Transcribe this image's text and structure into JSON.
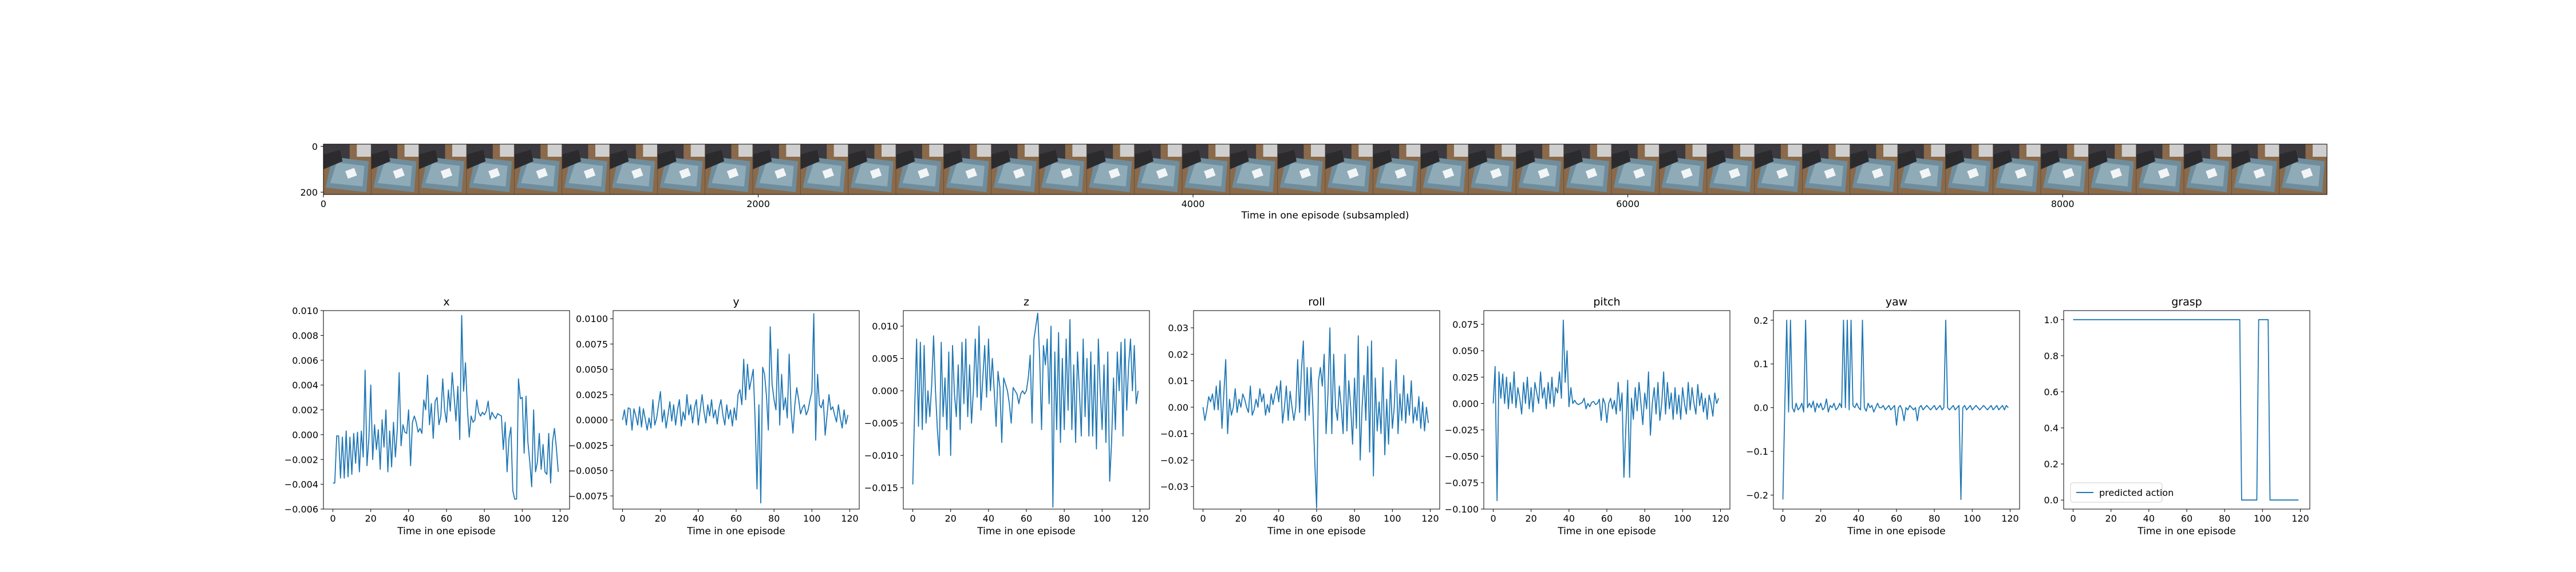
{
  "colors": {
    "line": "#1f77b4",
    "axis": "#000000",
    "background": "#ffffff"
  },
  "filmstrip": {
    "xlabel": "Time in one episode (subsampled)",
    "x_ticks": [
      "0",
      "2000",
      "4000",
      "6000",
      "8000"
    ],
    "y_ticks": [
      "0",
      "200"
    ],
    "frame_count": 42,
    "image_content": "robot arm camera frames over gray bin"
  },
  "chart_data": [
    {
      "type": "line",
      "title": "x",
      "xlabel": "Time in one episode",
      "ylabel": "",
      "xlim": [
        -5,
        125
      ],
      "ylim": [
        -0.006,
        0.01
      ],
      "x_ticks": [
        0,
        20,
        40,
        60,
        80,
        100,
        120
      ],
      "y_ticks": [
        -0.006,
        -0.004,
        -0.002,
        0.0,
        0.002,
        0.004,
        0.006,
        0.008,
        0.01
      ],
      "y_tick_labels": [
        "−0.006",
        "−0.004",
        "−0.002",
        "0.000",
        "0.002",
        "0.004",
        "0.006",
        "0.008",
        "0.010"
      ],
      "values": [
        -0.0039,
        -0.0039,
        -0.0001,
        -0.0001,
        -0.0035,
        -0.0002,
        -0.0035,
        0.0003,
        -0.0034,
        -0.0002,
        -0.0032,
        0.0001,
        -0.0023,
        0.0002,
        -0.003,
        0.0003,
        -0.0018,
        0.0052,
        -0.0025,
        -0.0003,
        0.004,
        -0.002,
        0.0008,
        -0.0012,
        0.0004,
        -0.0028,
        0.0012,
        -0.001,
        0.002,
        -0.003,
        0.0003,
        -0.0026,
        0.001,
        -0.0018,
        0.0004,
        0.005,
        -0.0009,
        0.0008,
        0.0002,
        0.0001,
        0.002,
        -0.0025,
        0.001,
        0.0015,
        0.001,
        0.0002,
        0.0005,
        0.0001,
        0.0028,
        0.002,
        0.0048,
        0.0008,
        0.0025,
        -0.0003,
        0.0027,
        0.003,
        0.0008,
        0.0015,
        0.0045,
        0.002,
        0.001,
        0.0036,
        0.0019,
        0.005,
        0.0031,
        0.0011,
        0.0039,
        -0.0004,
        0.0096,
        0.0035,
        0.0058,
        0.0022,
        -0.0002,
        0.0015,
        0.001,
        0.0012,
        0.0028,
        0.0018,
        0.0015,
        0.0018,
        0.0016,
        0.0019,
        0.0027,
        0.0012,
        0.0018,
        0.0015,
        0.0013,
        0.0017,
        0.0016,
        0.0015,
        -0.0012,
        0.001,
        -0.003,
        -0.0003,
        0.0006,
        -0.0045,
        -0.0052,
        -0.0052,
        0.0045,
        0.0029,
        0.003,
        -0.0015,
        0.0031,
        -0.0006,
        -0.0022,
        -0.0042,
        0.002,
        -0.003,
        -0.0022,
        0.0001,
        -0.0028,
        -0.0008,
        -0.003,
        -0.0032,
        0.0001,
        -0.0039,
        -0.0006,
        0.0005,
        -0.001,
        -0.003
      ]
    },
    {
      "type": "line",
      "title": "y",
      "xlabel": "Time in one episode",
      "ylabel": "",
      "xlim": [
        -5,
        125
      ],
      "ylim": [
        -0.0088,
        0.0108
      ],
      "x_ticks": [
        0,
        20,
        40,
        60,
        80,
        100,
        120
      ],
      "y_ticks": [
        -0.0075,
        -0.005,
        -0.0025,
        0.0,
        0.0025,
        0.005,
        0.0075,
        0.01
      ],
      "y_tick_labels": [
        "−0.0075",
        "−0.0050",
        "−0.0025",
        "0.0000",
        "0.0025",
        "0.0050",
        "0.0075",
        "0.0100"
      ],
      "values": [
        0.0,
        0.001,
        -0.0005,
        0.0012,
        0.0011,
        -0.001,
        0.0011,
        0.0004,
        -0.0005,
        0.0013,
        -0.0007,
        0.0011,
        0.0001,
        -0.001,
        0.0002,
        -0.0008,
        0.002,
        -0.0005,
        0.0002,
        0.0015,
        0.0028,
        -0.0002,
        0.001,
        -0.0008,
        0.0005,
        0.0018,
        -0.0001,
        0.0015,
        -0.0005,
        0.001,
        0.002,
        -0.0006,
        0.0008,
        0.0,
        0.0025,
        0.0005,
        0.0015,
        -0.0003,
        0.0012,
        0.002,
        -0.0005,
        0.001,
        0.0025,
        0.0008,
        -0.0003,
        0.0015,
        0.0004,
        0.002,
        0.0002,
        0.001,
        -0.0004,
        0.0012,
        0.002,
        0.0005,
        -0.0005,
        0.0015,
        0.0001,
        0.001,
        -0.0006,
        0.0012,
        0.0,
        0.0025,
        0.003,
        0.0015,
        0.006,
        0.002,
        0.0055,
        0.003,
        0.004,
        0.005,
        0.0,
        -0.0068,
        0.0015,
        -0.0082,
        0.0052,
        0.0045,
        0.0024,
        -0.001,
        0.0092,
        0.0035,
        0.002,
        0.001,
        0.007,
        -0.0005,
        0.0045,
        0.001,
        0.0022,
        0.0002,
        0.0065,
        0.001,
        -0.0013,
        0.0015,
        0.0032,
        0.002,
        0.0006,
        0.0012,
        0.0015,
        0.0005,
        0.001,
        0.002,
        0.0028,
        0.0105,
        -0.002,
        0.0045,
        0.0015,
        0.0012,
        0.002,
        -0.0015,
        0.0005,
        0.0025,
        0.001,
        0.0013,
        0.0005,
        -0.0002,
        0.0015,
        0.0002,
        -0.0008,
        0.001,
        -0.0004,
        0.0005
      ]
    },
    {
      "type": "line",
      "title": "z",
      "xlabel": "Time in one episode",
      "ylabel": "",
      "xlim": [
        -5,
        125
      ],
      "ylim": [
        -0.0183,
        0.0124
      ],
      "x_ticks": [
        0,
        20,
        40,
        60,
        80,
        100,
        120
      ],
      "y_ticks": [
        -0.015,
        -0.01,
        -0.005,
        0.0,
        0.005,
        0.01
      ],
      "y_tick_labels": [
        "−0.015",
        "−0.010",
        "−0.005",
        "0.000",
        "0.005",
        "0.010"
      ],
      "values": [
        -0.0145,
        -0.003,
        0.008,
        -0.0055,
        0.0075,
        -0.006,
        0.007,
        -0.005,
        0.0,
        -0.004,
        0.001,
        0.0085,
        0.0,
        -0.006,
        -0.01,
        0.0075,
        -0.004,
        0.002,
        -0.006,
        0.006,
        -0.01,
        0.007,
        -0.0005,
        -0.004,
        0.004,
        -0.006,
        0.0075,
        -0.002,
        0.008,
        -0.004,
        0.004,
        -0.005,
        0.0,
        0.008,
        -0.001,
        0.01,
        -0.003,
        0.002,
        0.007,
        -0.001,
        0.008,
        0.0,
        0.005,
        0.0,
        -0.0055,
        0.003,
        0.0005,
        -0.008,
        0.002,
        0.001,
        0.0,
        -0.002,
        -0.005,
        0.0005,
        0.0,
        -0.0005,
        -0.002,
        -0.0005,
        0.0,
        -0.0005,
        0.0,
        0.002,
        0.0055,
        -0.005,
        0.008,
        0.01,
        0.012,
        0.005,
        -0.006,
        0.007,
        0.004,
        0.008,
        -0.002,
        0.01,
        -0.018,
        0.006,
        -0.006,
        0.009,
        -0.008,
        0.005,
        -0.006,
        0.008,
        -0.003,
        0.011,
        -0.006,
        0.004,
        -0.008,
        0.006,
        0.0,
        -0.007,
        0.008,
        -0.004,
        0.005,
        -0.007,
        0.006,
        -0.007,
        0.004,
        -0.009,
        0.008,
        0.0,
        -0.006,
        0.004,
        -0.008,
        0.006,
        -0.014,
        -0.008,
        0.002,
        -0.006,
        0.006,
        0.0,
        0.0075,
        -0.007,
        0.008,
        -0.003,
        0.004,
        0.008,
        0.0,
        0.007,
        -0.002,
        0.0
      ]
    },
    {
      "type": "line",
      "title": "roll",
      "xlabel": "Time in one episode",
      "ylabel": "",
      "xlim": [
        -5,
        125
      ],
      "ylim": [
        -0.0385,
        0.0365
      ],
      "x_ticks": [
        0,
        20,
        40,
        60,
        80,
        100,
        120
      ],
      "y_ticks": [
        -0.03,
        -0.02,
        -0.01,
        0.0,
        0.01,
        0.02,
        0.03
      ],
      "y_tick_labels": [
        "−0.03",
        "−0.02",
        "−0.01",
        "0.00",
        "0.01",
        "0.02",
        "0.03"
      ],
      "values": [
        0.0,
        -0.005,
        -0.001,
        0.004,
        0.002,
        0.005,
        -0.001,
        0.008,
        -0.001,
        0.01,
        -0.008,
        0.005,
        0.018,
        -0.01,
        0.003,
        -0.003,
        0.0,
        0.007,
        -0.002,
        0.003,
        0.0,
        0.005,
        0.003,
        0.0,
        -0.002,
        0.008,
        -0.003,
        -0.001,
        0.003,
        0.0,
        0.007,
        0.002,
        0.005,
        -0.003,
        0.001,
        -0.002,
        0.005,
        0.001,
        0.005,
        0.008,
        0.002,
        0.01,
        -0.006,
        0.0,
        0.008,
        -0.005,
        0.006,
        0.0,
        -0.005,
        0.0,
        0.018,
        -0.002,
        0.014,
        0.025,
        -0.005,
        0.015,
        -0.003,
        0.015,
        0.0,
        -0.02,
        -0.038,
        0.01,
        0.015,
        0.008,
        0.02,
        -0.01,
        0.005,
        0.03,
        -0.01,
        0.02,
        0.0,
        -0.005,
        0.008,
        0.0,
        -0.01,
        0.02,
        -0.009,
        0.01,
        0.0,
        -0.014,
        0.011,
        -0.008,
        0.027,
        -0.02,
        0.0,
        0.012,
        -0.005,
        0.023,
        -0.017,
        0.025,
        -0.026,
        0.011,
        -0.009,
        0.002,
        -0.01,
        0.015,
        -0.018,
        0.003,
        -0.014,
        0.01,
        -0.008,
        0.0,
        0.018,
        -0.01,
        0.005,
        -0.005,
        0.012,
        -0.006,
        0.005,
        -0.003,
        0.01,
        -0.006,
        0.0,
        -0.005,
        0.004,
        -0.008,
        0.002,
        -0.009,
        0.0,
        -0.006
      ]
    },
    {
      "type": "line",
      "title": "pitch",
      "xlabel": "Time in one episode",
      "ylabel": "",
      "xlim": [
        -5,
        125
      ],
      "ylim": [
        -0.1,
        0.088
      ],
      "x_ticks": [
        0,
        20,
        40,
        60,
        80,
        100,
        120
      ],
      "y_ticks": [
        -0.1,
        -0.075,
        -0.05,
        -0.025,
        0.0,
        0.025,
        0.05,
        0.075
      ],
      "y_tick_labels": [
        "−0.100",
        "−0.075",
        "−0.050",
        "−0.025",
        "0.000",
        "0.025",
        "0.050",
        "0.075"
      ],
      "values": [
        0.0,
        0.035,
        -0.092,
        0.03,
        0.005,
        0.028,
        0.0,
        0.025,
        -0.005,
        0.02,
        0.0,
        0.03,
        -0.004,
        0.015,
        0.005,
        -0.01,
        0.02,
        0.0,
        0.025,
        -0.005,
        0.015,
        -0.008,
        0.02,
        0.01,
        0.0,
        0.03,
        0.005,
        0.015,
        -0.005,
        0.02,
        0.0,
        0.025,
        -0.003,
        0.015,
        0.01,
        0.03,
        0.005,
        0.079,
        0.02,
        0.05,
        -0.003,
        0.015,
        0.0,
        0.003,
        0.0,
        -0.001,
        0.0,
        0.001,
        0.005,
        -0.005,
        0.0,
        -0.003,
        0.001,
        0.002,
        -0.001,
        0.0,
        0.004,
        -0.016,
        0.005,
        0.0,
        -0.018,
        0.0,
        0.005,
        -0.005,
        0.003,
        -0.01,
        0.02,
        -0.007,
        0.01,
        -0.07,
        -0.025,
        0.022,
        -0.07,
        0.005,
        -0.015,
        0.015,
        -0.007,
        0.02,
        0.0,
        -0.02,
        0.01,
        -0.005,
        0.03,
        -0.03,
        0.0,
        0.015,
        -0.01,
        0.02,
        -0.016,
        0.0,
        0.03,
        -0.01,
        0.02,
        -0.005,
        0.01,
        -0.015,
        0.015,
        -0.01,
        0.008,
        -0.015,
        0.015,
        0.0,
        -0.01,
        0.02,
        -0.006,
        0.015,
        0.0,
        -0.01,
        0.018,
        -0.002,
        0.01,
        -0.008,
        0.005,
        -0.015,
        0.008,
        0.0,
        -0.012,
        0.01,
        0.0,
        0.005
      ]
    },
    {
      "type": "line",
      "title": "yaw",
      "xlabel": "Time in one episode",
      "ylabel": "",
      "xlim": [
        -5,
        125
      ],
      "ylim": [
        -0.232,
        0.222
      ],
      "x_ticks": [
        0,
        20,
        40,
        60,
        80,
        100,
        120
      ],
      "y_ticks": [
        -0.2,
        -0.1,
        0.0,
        0.1,
        0.2
      ],
      "y_tick_labels": [
        "−0.2",
        "−0.1",
        "0.0",
        "0.1",
        "0.2"
      ],
      "values": [
        -0.21,
        0.0,
        0.2,
        -0.01,
        0.2,
        0.0,
        -0.01,
        0.01,
        -0.005,
        0.0,
        0.01,
        -0.01,
        0.2,
        0.0,
        0.01,
        0.0,
        0.015,
        -0.01,
        0.01,
        0.0,
        0.01,
        -0.005,
        0.0,
        0.02,
        -0.01,
        0.005,
        0.0,
        0.01,
        -0.005,
        0.0,
        0.01,
        0.0,
        0.2,
        0.0,
        0.2,
        -0.005,
        0.2,
        0.005,
        0.0,
        0.01,
        0.0,
        -0.005,
        0.2,
        0.0,
        -0.008,
        0.01,
        0.0,
        0.005,
        -0.01,
        0.0,
        0.01,
        0.0,
        0.0,
        0.005,
        -0.005,
        0.0,
        0.005,
        -0.005,
        0.0,
        0.005,
        -0.04,
        0.0,
        0.005,
        -0.005,
        -0.03,
        0.0,
        -0.005,
        0.005,
        0.0,
        -0.005,
        0.0,
        -0.03,
        0.0,
        0.005,
        -0.005,
        0.0,
        0.005,
        0.0,
        -0.005,
        0.0,
        0.005,
        -0.005,
        0.0,
        0.005,
        -0.005,
        0.0,
        0.2,
        0.0,
        -0.005,
        0.0,
        0.005,
        -0.005,
        0.0,
        0.005,
        -0.21,
        0.0,
        0.005,
        -0.005,
        0.0,
        0.005,
        -0.005,
        0.0,
        0.005,
        0.0,
        -0.005,
        0.0,
        0.005,
        0.0,
        -0.005,
        0.0,
        0.005,
        -0.005,
        0.0,
        0.005,
        -0.005,
        0.0,
        0.005,
        -0.005,
        0.005,
        0.0
      ]
    },
    {
      "type": "line",
      "title": "grasp",
      "xlabel": "Time in one episode",
      "ylabel": "",
      "xlim": [
        -5,
        125
      ],
      "ylim": [
        -0.05,
        1.05
      ],
      "x_ticks": [
        0,
        20,
        40,
        60,
        80,
        100,
        120
      ],
      "y_ticks": [
        0.0,
        0.2,
        0.4,
        0.6,
        0.8,
        1.0
      ],
      "y_tick_labels": [
        "0.0",
        "0.2",
        "0.4",
        "0.6",
        "0.8",
        "1.0"
      ],
      "legend": {
        "label": "predicted action",
        "position": "lower-left"
      },
      "values": [
        1,
        1,
        1,
        1,
        1,
        1,
        1,
        1,
        1,
        1,
        1,
        1,
        1,
        1,
        1,
        1,
        1,
        1,
        1,
        1,
        1,
        1,
        1,
        1,
        1,
        1,
        1,
        1,
        1,
        1,
        1,
        1,
        1,
        1,
        1,
        1,
        1,
        1,
        1,
        1,
        1,
        1,
        1,
        1,
        1,
        1,
        1,
        1,
        1,
        1,
        1,
        1,
        1,
        1,
        1,
        1,
        1,
        1,
        1,
        1,
        1,
        1,
        1,
        1,
        1,
        1,
        1,
        1,
        1,
        1,
        1,
        1,
        1,
        1,
        1,
        1,
        1,
        1,
        1,
        1,
        1,
        1,
        1,
        1,
        1,
        1,
        1,
        1,
        1,
        0,
        0,
        0,
        0,
        0,
        0,
        0,
        0,
        0,
        1,
        1,
        1,
        1,
        1,
        1,
        0,
        0,
        0,
        0,
        0,
        0,
        0,
        0,
        0,
        0,
        0,
        0,
        0,
        0,
        0,
        0
      ]
    }
  ]
}
